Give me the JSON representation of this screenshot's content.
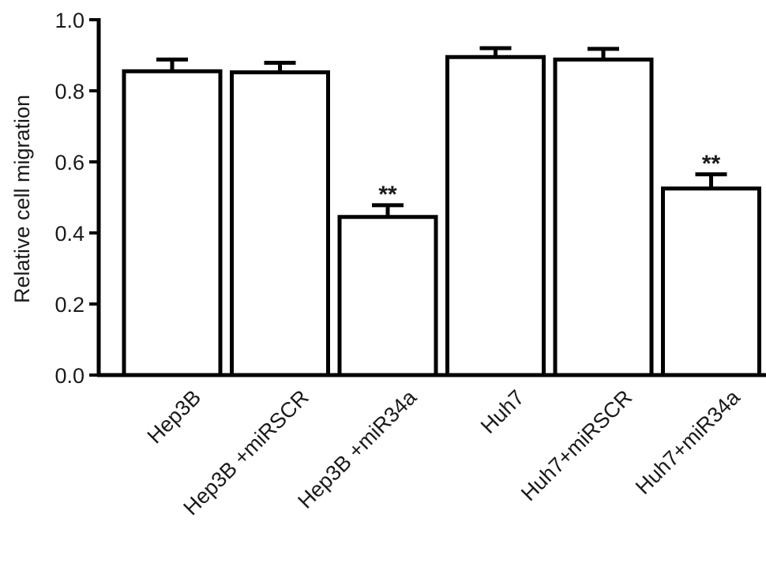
{
  "chart_data": {
    "type": "bar",
    "title": "",
    "xlabel": "",
    "ylabel": "Relative cell migration",
    "ylim": [
      0,
      1.0
    ],
    "yticks": [
      "0.0",
      "0.2",
      "0.4",
      "0.6",
      "0.8",
      "1.0"
    ],
    "categories": [
      "Hep3B",
      "Hep3B +miRSCR",
      "Hep3B +miR34a",
      "Huh7",
      "Huh7+miRSCR",
      "Huh7+miR34a"
    ],
    "values": [
      0.855,
      0.852,
      0.445,
      0.895,
      0.888,
      0.525
    ],
    "errors": [
      0.033,
      0.027,
      0.033,
      0.025,
      0.03,
      0.04
    ],
    "significance": [
      "",
      "",
      "**",
      "",
      "",
      "**"
    ],
    "grid": false,
    "legend": "none",
    "colors": {
      "bar_fill": "#ffffff",
      "bar_stroke": "#000000",
      "axis": "#000000"
    }
  }
}
